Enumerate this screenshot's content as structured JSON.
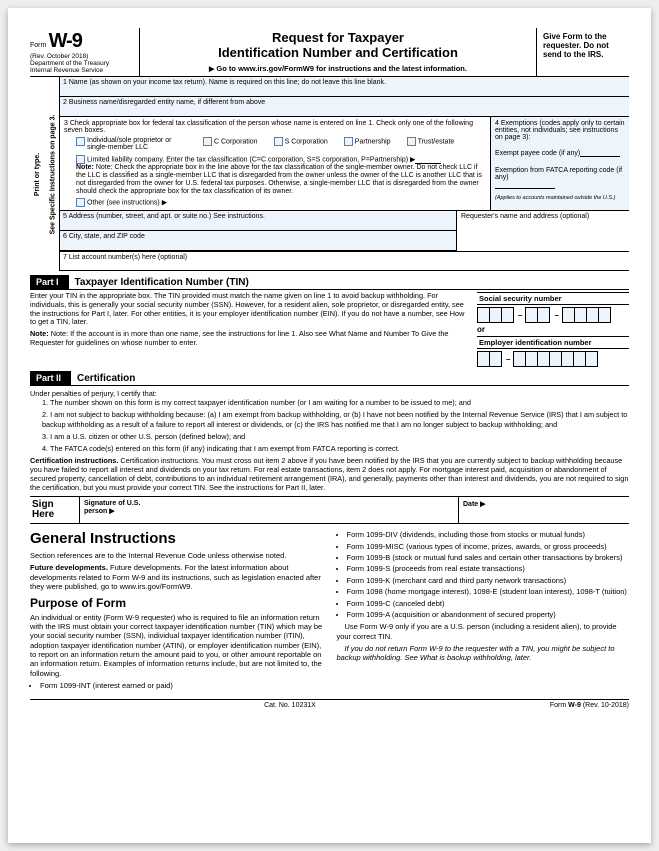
{
  "header": {
    "form_label": "Form",
    "form_num": "W-9",
    "rev": "(Rev. October 2018)",
    "dept1": "Department of the Treasury",
    "dept2": "Internal Revenue Service",
    "title1": "Request for Taxpayer",
    "title2": "Identification Number and Certification",
    "goto": "Go to www.irs.gov/FormW9 for instructions and the latest information.",
    "give": "Give Form to the requester. Do not send to the IRS."
  },
  "side": {
    "a": "Print or type.",
    "b": "Specific Instructions",
    "c": "See",
    "d": "on page 3."
  },
  "f": {
    "l1": "1  Name (as shown on your income tax return). Name is required on this line; do not leave this line blank.",
    "l2": "2  Business name/disregarded entity name, if different from above",
    "l3a": "3  Check appropriate box for federal tax classification of the person whose name is entered on line 1. Check only one of the following seven boxes.",
    "c1": "Individual/sole proprietor or single-member LLC",
    "c2": "C Corporation",
    "c3": "S Corporation",
    "c4": "Partnership",
    "c5": "Trust/estate",
    "llc": "Limited liability company. Enter the tax classification (C=C corporation, S=S corporation, P=Partnership) ▶",
    "note": "Note: Check the appropriate box in the line above for the tax classification of the single-member owner. Do not check LLC if the LLC is classified as a single-member LLC that is disregarded from the owner unless the owner of the LLC is another LLC that is not disregarded from the owner for U.S. federal tax purposes. Otherwise, a single-member LLC that is disregarded from the owner should check the appropriate box for the tax classification of its owner.",
    "other": "Other (see instructions) ▶",
    "l4a": "4  Exemptions (codes apply only to certain entities, not individuals; see instructions on page 3):",
    "l4b": "Exempt payee code (if any)",
    "l4c": "Exemption from FATCA reporting code (if any)",
    "l4d": "(Applies to accounts maintained outside the U.S.)",
    "l5": "5  Address (number, street, and apt. or suite no.) See instructions.",
    "l5r": "Requester's name and address (optional)",
    "l6": "6  City, state, and ZIP code",
    "l7": "7  List account number(s) here (optional)"
  },
  "p1": {
    "bar": "Part I",
    "title": "Taxpayer Identification Number (TIN)",
    "t1": "Enter your TIN in the appropriate box. The TIN provided must match the name given on line 1 to avoid backup withholding. For individuals, this is generally your social security number (SSN). However, for a resident alien, sole proprietor, or disregarded entity, see the instructions for Part I, later. For other entities, it is your employer identification number (EIN). If you do not have a number, see How to get a TIN, later.",
    "t2": "Note: If the account is in more than one name, see the instructions for line 1. Also see What Name and Number To Give the Requester for guidelines on whose number to enter.",
    "ssn": "Social security number",
    "or": "or",
    "ein": "Employer identification number"
  },
  "p2": {
    "bar": "Part II",
    "title": "Certification",
    "intro": "Under penalties of perjury, I certify that:",
    "i1": "1. The number shown on this form is my correct taxpayer identification number (or I am waiting for a number to be issued to me); and",
    "i2": "2. I am not subject to backup withholding because: (a) I am exempt from backup withholding, or (b) I have not been notified by the Internal Revenue Service (IRS) that I am subject to backup withholding as a result of a failure to report all interest or dividends, or (c) the IRS has notified me that I am no longer subject to backup withholding; and",
    "i3": "3. I am a U.S. citizen or other U.S. person (defined below); and",
    "i4": "4. The FATCA code(s) entered on this form (if any) indicating that I am exempt from FATCA reporting is correct.",
    "cert": "Certification instructions. You must cross out item 2 above if you have been notified by the IRS that you are currently subject to backup withholding because you have failed to report all interest and dividends on your tax return. For real estate transactions, item 2 does not apply. For mortgage interest paid, acquisition or abandonment of secured property, cancellation of debt, contributions to an individual retirement arrangement (IRA), and generally, payments other than interest and dividends, you are not required to sign the certification, but you must provide your correct TIN. See the instructions for Part II, later.",
    "sign": "Sign Here",
    "sig": "Signature of U.S. person ▶",
    "date": "Date ▶"
  },
  "gi": {
    "h1": "General Instructions",
    "p1": "Section references are to the Internal Revenue Code unless otherwise noted.",
    "p2": "Future developments. For the latest information about developments related to Form W-9 and its instructions, such as legislation enacted after they were published, go to www.irs.gov/FormW9.",
    "h2": "Purpose of Form",
    "p3": "An individual or entity (Form W-9 requester) who is required to file an information return with the IRS must obtain your correct taxpayer identification number (TIN) which may be your social security number (SSN), individual taxpayer identification number (ITIN), adoption taxpayer identification number (ATIN), or employer identification number (EIN), to report on an information return the amount paid to you, or other amount reportable on an information return. Examples of information returns include, but are not limited to, the following.",
    "b1": "Form 1099-INT (interest earned or paid)",
    "rb": [
      "Form 1099-DIV (dividends, including those from stocks or mutual funds)",
      "Form 1099-MISC (various types of income, prizes, awards, or gross proceeds)",
      "Form 1099-B (stock or mutual fund sales and certain other transactions by brokers)",
      "Form 1099-S (proceeds from real estate transactions)",
      "Form 1099-K (merchant card and third party network transactions)",
      "Form 1098 (home mortgage interest), 1098-E (student loan interest), 1098-T (tuition)",
      "Form 1099-C (canceled debt)",
      "Form 1099-A (acquisition or abandonment of secured property)"
    ],
    "r1": "Use Form W-9 only if you are a U.S. person (including a resident alien), to provide your correct TIN.",
    "r2": "If you do not return Form W-9 to the requester with a TIN, you might be subject to backup withholding. See What is backup withholding, later."
  },
  "footer": {
    "cat": "Cat. No. 10231X",
    "frm": "Form W-9 (Rev. 10-2018)"
  }
}
